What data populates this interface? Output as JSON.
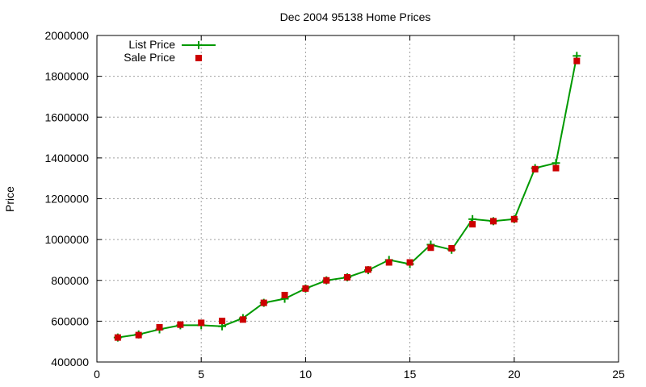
{
  "chart_data": {
    "type": "line",
    "title": "Dec 2004 95138 Home Prices",
    "xlabel": "",
    "ylabel": "Price",
    "xlim": [
      0,
      25
    ],
    "ylim": [
      400000,
      2000000
    ],
    "xticks": [
      0,
      5,
      10,
      15,
      20,
      25
    ],
    "yticks": [
      400000,
      600000,
      800000,
      1000000,
      1200000,
      1400000,
      1600000,
      1800000,
      2000000
    ],
    "grid": true,
    "legend_position": "top-left",
    "x": [
      1,
      2,
      3,
      4,
      5,
      6,
      7,
      8,
      9,
      10,
      11,
      12,
      13,
      14,
      15,
      16,
      17,
      18,
      19,
      20,
      21,
      22,
      23
    ],
    "series": [
      {
        "name": "List Price",
        "style": "line-with-plus-markers",
        "color": "#009900",
        "values": [
          520000,
          535000,
          560000,
          580000,
          580000,
          575000,
          615000,
          690000,
          710000,
          760000,
          800000,
          815000,
          850000,
          900000,
          880000,
          975000,
          950000,
          1100000,
          1090000,
          1100000,
          1350000,
          1375000,
          1900000
        ]
      },
      {
        "name": "Sale Price",
        "style": "square-points",
        "color": "#cc0000",
        "values": [
          520000,
          532000,
          570000,
          583000,
          592000,
          601000,
          608000,
          690000,
          728000,
          760000,
          800000,
          815000,
          853000,
          888000,
          888000,
          960000,
          957000,
          1075000,
          1090000,
          1100000,
          1345000,
          1350000,
          1875000
        ]
      }
    ]
  }
}
